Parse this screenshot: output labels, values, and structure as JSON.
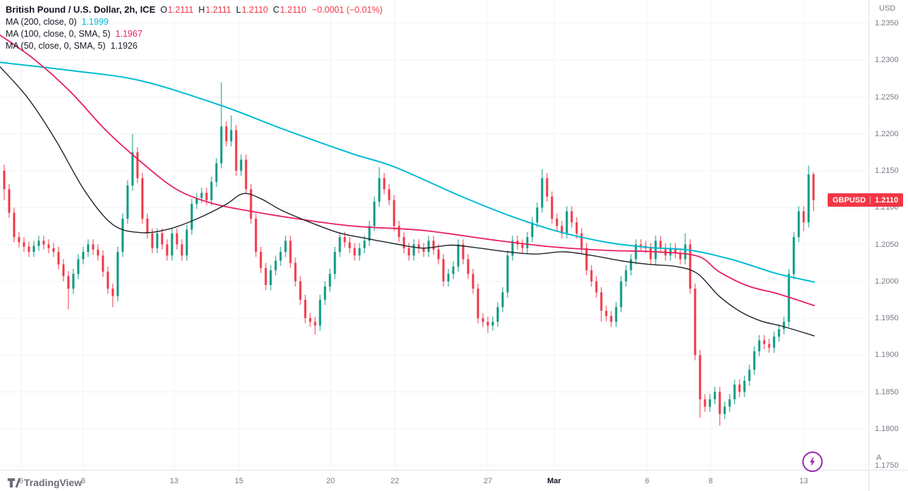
{
  "header": {
    "symbol_title": "British Pound / U.S. Dollar, 2h, ICE",
    "ohlc": {
      "o_label": "O",
      "o": "1.2111",
      "h_label": "H",
      "h": "1.2111",
      "l_label": "L",
      "l": "1.2110",
      "c_label": "C",
      "c": "1.2110",
      "change": "−0.0001 (−0.01%)"
    },
    "indicators": [
      {
        "label": "MA (200, close, 0)",
        "value": "1.1999"
      },
      {
        "label": "MA (100, close, 0, SMA, 5)",
        "value": "1.1967"
      },
      {
        "label": "MA (50, close, 0, SMA, 5)",
        "value": "1.1926"
      }
    ]
  },
  "price_axis": {
    "currency_label": "USD",
    "auto_label": "A",
    "badge": {
      "symbol": "GBPUSD",
      "price": "1.2110"
    }
  },
  "logo_text": "TradingView",
  "colors": {
    "up": "#089981",
    "down": "#f23645",
    "grid": "#f0f3fa",
    "axis_text": "#787b86",
    "title_text": "#131722",
    "badge": "#f23645",
    "accent_purple": "#9c27b0"
  },
  "chart_data": {
    "type": "candlestick",
    "title": "British Pound / U.S. Dollar, 2h, ICE",
    "symbol": "GBPUSD",
    "timeframe": "2h",
    "exchange": "ICE",
    "ylim": [
      1.175,
      1.235
    ],
    "y_ticks": [
      "1.2350",
      "1.2300",
      "1.2250",
      "1.2200",
      "1.2150",
      "1.2100",
      "1.2050",
      "1.2000",
      "1.1950",
      "1.1900",
      "1.1850",
      "1.1800",
      "1.1750"
    ],
    "x_ticks": [
      {
        "label": "6",
        "x": 30
      },
      {
        "label": "8",
        "x": 118
      },
      {
        "label": "13",
        "x": 247
      },
      {
        "label": "15",
        "x": 339
      },
      {
        "label": "20",
        "x": 469
      },
      {
        "label": "22",
        "x": 560
      },
      {
        "label": "27",
        "x": 692
      },
      {
        "label": "Mar",
        "x": 786,
        "major": true
      },
      {
        "label": "6",
        "x": 918
      },
      {
        "label": "8",
        "x": 1008
      },
      {
        "label": "13",
        "x": 1140
      }
    ],
    "up_color": "#089981",
    "down_color": "#f23645",
    "candles": [
      [
        1.215,
        1.2158,
        1.211,
        1.2125
      ],
      [
        1.2125,
        1.2132,
        1.2086,
        1.2093
      ],
      [
        1.2093,
        1.21,
        1.2053,
        1.206
      ],
      [
        1.206,
        1.2067,
        1.2046,
        1.2053
      ],
      [
        1.2053,
        1.206,
        1.204,
        1.2047
      ],
      [
        1.2047,
        1.2054,
        1.2033,
        1.204
      ],
      [
        1.204,
        1.2055,
        1.2033,
        1.2048
      ],
      [
        1.2048,
        1.2062,
        1.2041,
        1.2055
      ],
      [
        1.2055,
        1.2062,
        1.2043,
        1.205
      ],
      [
        1.205,
        1.2057,
        1.2038,
        1.2045
      ],
      [
        1.2045,
        1.2052,
        1.2033,
        1.204
      ],
      [
        1.204,
        1.2047,
        1.2016,
        1.2023
      ],
      [
        1.2023,
        1.203,
        1.2,
        1.2007
      ],
      [
        1.2007,
        1.2014,
        1.1962,
        1.199
      ],
      [
        1.199,
        1.2017,
        1.1983,
        1.201
      ],
      [
        1.201,
        1.2037,
        1.2003,
        1.203
      ],
      [
        1.203,
        1.2047,
        1.2023,
        1.204
      ],
      [
        1.204,
        1.2057,
        1.2033,
        1.205
      ],
      [
        1.205,
        1.2057,
        1.2036,
        1.2043
      ],
      [
        1.2043,
        1.205,
        1.2028,
        1.2035
      ],
      [
        1.2035,
        1.2042,
        1.2006,
        1.2013
      ],
      [
        1.2013,
        1.202,
        1.1983,
        1.199
      ],
      [
        1.199,
        1.1997,
        1.1965,
        1.198
      ],
      [
        1.198,
        1.2047,
        1.1973,
        1.204
      ],
      [
        1.204,
        1.2092,
        1.2033,
        1.2085
      ],
      [
        1.2085,
        1.2137,
        1.2078,
        1.213
      ],
      [
        1.213,
        1.22,
        1.2123,
        1.2175
      ],
      [
        1.2175,
        1.2182,
        1.2133,
        1.214
      ],
      [
        1.214,
        1.2147,
        1.2078,
        1.2085
      ],
      [
        1.2085,
        1.2092,
        1.2058,
        1.2065
      ],
      [
        1.2065,
        1.2072,
        1.2038,
        1.2045
      ],
      [
        1.2045,
        1.2072,
        1.2038,
        1.2065
      ],
      [
        1.2065,
        1.2072,
        1.2043,
        1.205
      ],
      [
        1.205,
        1.2057,
        1.2028,
        1.2035
      ],
      [
        1.2035,
        1.2072,
        1.2028,
        1.2065
      ],
      [
        1.2065,
        1.2072,
        1.2043,
        1.205
      ],
      [
        1.205,
        1.2057,
        1.2028,
        1.2035
      ],
      [
        1.2035,
        1.2077,
        1.2028,
        1.207
      ],
      [
        1.207,
        1.2112,
        1.2063,
        1.2105
      ],
      [
        1.2105,
        1.212,
        1.2098,
        1.2113
      ],
      [
        1.2113,
        1.2127,
        1.2106,
        1.212
      ],
      [
        1.212,
        1.2127,
        1.2103,
        1.211
      ],
      [
        1.211,
        1.2142,
        1.2103,
        1.2135
      ],
      [
        1.2135,
        1.2167,
        1.2128,
        1.216
      ],
      [
        1.216,
        1.227,
        1.2153,
        1.221
      ],
      [
        1.221,
        1.2217,
        1.2183,
        1.219
      ],
      [
        1.219,
        1.2225,
        1.2183,
        1.2205
      ],
      [
        1.2205,
        1.2212,
        1.2143,
        1.215
      ],
      [
        1.215,
        1.2172,
        1.2143,
        1.2165
      ],
      [
        1.2165,
        1.2172,
        1.2118,
        1.2125
      ],
      [
        1.2125,
        1.2132,
        1.2078,
        1.2085
      ],
      [
        1.2085,
        1.2092,
        1.2033,
        1.204
      ],
      [
        1.204,
        1.2047,
        1.2011,
        1.2018
      ],
      [
        1.2018,
        1.2025,
        1.1988,
        1.1995
      ],
      [
        1.1995,
        1.2022,
        1.1988,
        1.2015
      ],
      [
        1.2015,
        1.2035,
        1.2008,
        1.2028
      ],
      [
        1.2028,
        1.2047,
        1.2021,
        1.204
      ],
      [
        1.204,
        1.2062,
        1.2033,
        1.2055
      ],
      [
        1.2055,
        1.2062,
        1.2018,
        1.2025
      ],
      [
        1.2025,
        1.2032,
        1.1993,
        1.2
      ],
      [
        1.2,
        1.2007,
        1.1968,
        1.1975
      ],
      [
        1.1975,
        1.1982,
        1.1943,
        1.195
      ],
      [
        1.195,
        1.1957,
        1.1938,
        1.1945
      ],
      [
        1.1945,
        1.1952,
        1.1928,
        1.194
      ],
      [
        1.194,
        1.1982,
        1.1933,
        1.1975
      ],
      [
        1.1975,
        1.2,
        1.1968,
        1.1993
      ],
      [
        1.1993,
        1.2017,
        1.1986,
        1.201
      ],
      [
        1.201,
        1.2047,
        1.2003,
        1.204
      ],
      [
        1.204,
        1.2067,
        1.2033,
        1.206
      ],
      [
        1.206,
        1.2067,
        1.2046,
        1.2053
      ],
      [
        1.2053,
        1.206,
        1.2038,
        1.2045
      ],
      [
        1.2045,
        1.2052,
        1.2028,
        1.2035
      ],
      [
        1.2035,
        1.2052,
        1.2028,
        1.2045
      ],
      [
        1.2045,
        1.2062,
        1.2038,
        1.2055
      ],
      [
        1.2055,
        1.2082,
        1.2048,
        1.2075
      ],
      [
        1.2075,
        1.2115,
        1.2068,
        1.2108
      ],
      [
        1.2108,
        1.2155,
        1.2101,
        1.214
      ],
      [
        1.214,
        1.2147,
        1.2118,
        1.2125
      ],
      [
        1.2125,
        1.2132,
        1.2103,
        1.211
      ],
      [
        1.211,
        1.2117,
        1.2068,
        1.2075
      ],
      [
        1.2075,
        1.2082,
        1.2053,
        1.206
      ],
      [
        1.206,
        1.2067,
        1.2038,
        1.2045
      ],
      [
        1.2045,
        1.2052,
        1.2028,
        1.2035
      ],
      [
        1.2035,
        1.2057,
        1.2028,
        1.205
      ],
      [
        1.205,
        1.2057,
        1.2038,
        1.2045
      ],
      [
        1.2045,
        1.2052,
        1.2033,
        1.204
      ],
      [
        1.204,
        1.2062,
        1.2033,
        1.2055
      ],
      [
        1.2055,
        1.2062,
        1.2036,
        1.2043
      ],
      [
        1.2043,
        1.205,
        1.2023,
        1.203
      ],
      [
        1.203,
        1.2037,
        1.1993,
        1.2
      ],
      [
        1.2,
        1.2017,
        1.1993,
        1.201
      ],
      [
        1.201,
        1.2027,
        1.2003,
        1.202
      ],
      [
        1.202,
        1.2057,
        1.2013,
        1.205
      ],
      [
        1.205,
        1.2057,
        1.2023,
        1.203
      ],
      [
        1.203,
        1.2037,
        1.2003,
        1.201
      ],
      [
        1.201,
        1.2017,
        1.1983,
        1.199
      ],
      [
        1.199,
        1.1997,
        1.1943,
        1.195
      ],
      [
        1.195,
        1.1957,
        1.1938,
        1.1945
      ],
      [
        1.1945,
        1.1952,
        1.193,
        1.194
      ],
      [
        1.194,
        1.1952,
        1.1933,
        1.1945
      ],
      [
        1.1945,
        1.1972,
        1.1938,
        1.1965
      ],
      [
        1.1965,
        1.1992,
        1.1958,
        1.1985
      ],
      [
        1.1985,
        1.2042,
        1.1978,
        1.2035
      ],
      [
        1.2035,
        1.2062,
        1.2028,
        1.2055
      ],
      [
        1.2055,
        1.2062,
        1.2043,
        1.205
      ],
      [
        1.205,
        1.2057,
        1.2038,
        1.2045
      ],
      [
        1.2045,
        1.2067,
        1.2038,
        1.206
      ],
      [
        1.206,
        1.2087,
        1.2053,
        1.208
      ],
      [
        1.208,
        1.2107,
        1.2073,
        1.21
      ],
      [
        1.21,
        1.2152,
        1.2093,
        1.214
      ],
      [
        1.214,
        1.2147,
        1.2108,
        1.2115
      ],
      [
        1.2115,
        1.2122,
        1.2078,
        1.2085
      ],
      [
        1.2085,
        1.2092,
        1.2068,
        1.2075
      ],
      [
        1.2075,
        1.2082,
        1.2058,
        1.2065
      ],
      [
        1.2065,
        1.2102,
        1.2058,
        1.2095
      ],
      [
        1.2095,
        1.2102,
        1.2073,
        1.208
      ],
      [
        1.208,
        1.2087,
        1.2058,
        1.2065
      ],
      [
        1.2065,
        1.2072,
        1.2038,
        1.2045
      ],
      [
        1.2045,
        1.2052,
        1.2008,
        1.2015
      ],
      [
        1.2015,
        1.2022,
        1.1993,
        1.2
      ],
      [
        1.2,
        1.2007,
        1.1978,
        1.1985
      ],
      [
        1.1985,
        1.1992,
        1.1945,
        1.196
      ],
      [
        1.196,
        1.1967,
        1.1946,
        1.1953
      ],
      [
        1.1953,
        1.196,
        1.1938,
        1.1945
      ],
      [
        1.1945,
        1.1972,
        1.1938,
        1.1965
      ],
      [
        1.1965,
        1.2007,
        1.1958,
        1.2
      ],
      [
        1.2,
        1.2022,
        1.1993,
        1.2015
      ],
      [
        1.2015,
        1.2037,
        1.2008,
        1.203
      ],
      [
        1.203,
        1.2057,
        1.2023,
        1.205
      ],
      [
        1.205,
        1.2057,
        1.2041,
        1.2048
      ],
      [
        1.2048,
        1.2055,
        1.2038,
        1.2045
      ],
      [
        1.2045,
        1.2052,
        1.2023,
        1.203
      ],
      [
        1.203,
        1.2062,
        1.2023,
        1.2055
      ],
      [
        1.2055,
        1.2062,
        1.2038,
        1.2045
      ],
      [
        1.2045,
        1.2052,
        1.2028,
        1.2035
      ],
      [
        1.2035,
        1.2052,
        1.2028,
        1.2045
      ],
      [
        1.2045,
        1.2052,
        1.2031,
        1.2038
      ],
      [
        1.2038,
        1.2045,
        1.2023,
        1.203
      ],
      [
        1.203,
        1.2065,
        1.2023,
        1.205
      ],
      [
        1.205,
        1.2057,
        1.1983,
        1.199
      ],
      [
        1.199,
        1.1997,
        1.1893,
        1.19
      ],
      [
        1.19,
        1.1907,
        1.1815,
        1.184
      ],
      [
        1.184,
        1.1847,
        1.1823,
        1.183
      ],
      [
        1.183,
        1.1847,
        1.1823,
        1.184
      ],
      [
        1.184,
        1.1857,
        1.1833,
        1.185
      ],
      [
        1.185,
        1.1857,
        1.1804,
        1.182
      ],
      [
        1.182,
        1.1837,
        1.1813,
        1.183
      ],
      [
        1.183,
        1.1847,
        1.1823,
        1.184
      ],
      [
        1.184,
        1.1867,
        1.1833,
        1.186
      ],
      [
        1.186,
        1.1867,
        1.1843,
        1.185
      ],
      [
        1.185,
        1.1872,
        1.1843,
        1.1865
      ],
      [
        1.1865,
        1.1887,
        1.1858,
        1.188
      ],
      [
        1.188,
        1.1912,
        1.1873,
        1.1905
      ],
      [
        1.1905,
        1.1927,
        1.1898,
        1.192
      ],
      [
        1.192,
        1.1927,
        1.1908,
        1.1915
      ],
      [
        1.1915,
        1.1922,
        1.1903,
        1.191
      ],
      [
        1.191,
        1.1932,
        1.1903,
        1.1925
      ],
      [
        1.1925,
        1.1942,
        1.1918,
        1.1935
      ],
      [
        1.1935,
        1.1952,
        1.1928,
        1.1945
      ],
      [
        1.1945,
        1.2017,
        1.1938,
        1.201
      ],
      [
        1.201,
        1.2067,
        1.2003,
        1.206
      ],
      [
        1.206,
        1.2102,
        1.2053,
        1.2095
      ],
      [
        1.2095,
        1.2102,
        1.2068,
        1.208
      ],
      [
        1.208,
        1.2157,
        1.2073,
        1.2145
      ],
      [
        1.2145,
        1.2148,
        1.2095,
        1.211
      ]
    ],
    "ma_series": [
      {
        "name": "MA200",
        "color": "#00bcd4",
        "width": 2,
        "points": [
          [
            0,
            1.2297
          ],
          [
            100,
            1.2286
          ],
          [
            200,
            1.2272
          ],
          [
            315,
            1.2238
          ],
          [
            400,
            1.2207
          ],
          [
            500,
            1.2173
          ],
          [
            560,
            1.2155
          ],
          [
            650,
            1.2117
          ],
          [
            720,
            1.209
          ],
          [
            790,
            1.2068
          ],
          [
            860,
            1.2053
          ],
          [
            920,
            1.2046
          ],
          [
            980,
            1.2042
          ],
          [
            1040,
            1.2029
          ],
          [
            1100,
            1.2011
          ],
          [
            1155,
            1.1999
          ]
        ]
      },
      {
        "name": "MA100",
        "color": "#e91e63",
        "width": 1.8,
        "points": [
          [
            0,
            1.2334
          ],
          [
            50,
            1.23
          ],
          [
            100,
            1.2257
          ],
          [
            150,
            1.2205
          ],
          [
            200,
            1.2162
          ],
          [
            250,
            1.2125
          ],
          [
            300,
            1.2106
          ],
          [
            350,
            1.2096
          ],
          [
            420,
            1.2085
          ],
          [
            500,
            1.2075
          ],
          [
            600,
            1.2069
          ],
          [
            700,
            1.2056
          ],
          [
            780,
            1.2047
          ],
          [
            860,
            1.2042
          ],
          [
            930,
            1.204
          ],
          [
            990,
            1.2034
          ],
          [
            1020,
            1.2013
          ],
          [
            1060,
            1.1994
          ],
          [
            1100,
            1.1984
          ],
          [
            1130,
            1.1975
          ],
          [
            1155,
            1.1967
          ]
        ]
      },
      {
        "name": "MA50",
        "color": "#1e222d",
        "width": 1.4,
        "points": [
          [
            0,
            1.2291
          ],
          [
            40,
            1.2248
          ],
          [
            80,
            1.219
          ],
          [
            120,
            1.2123
          ],
          [
            160,
            1.2077
          ],
          [
            200,
            1.2066
          ],
          [
            240,
            1.2071
          ],
          [
            280,
            1.2085
          ],
          [
            320,
            1.2104
          ],
          [
            345,
            1.2119
          ],
          [
            370,
            1.2112
          ],
          [
            400,
            1.2096
          ],
          [
            440,
            1.208
          ],
          [
            480,
            1.2066
          ],
          [
            520,
            1.2058
          ],
          [
            560,
            1.2051
          ],
          [
            600,
            1.2045
          ],
          [
            640,
            1.2049
          ],
          [
            680,
            1.2045
          ],
          [
            720,
            1.204
          ],
          [
            760,
            1.2037
          ],
          [
            800,
            1.204
          ],
          [
            840,
            1.2035
          ],
          [
            880,
            1.2028
          ],
          [
            920,
            1.2023
          ],
          [
            960,
            1.202
          ],
          [
            990,
            1.201
          ],
          [
            1020,
            1.198
          ],
          [
            1050,
            1.1959
          ],
          [
            1080,
            1.1946
          ],
          [
            1110,
            1.1939
          ],
          [
            1155,
            1.1926
          ]
        ]
      }
    ]
  }
}
